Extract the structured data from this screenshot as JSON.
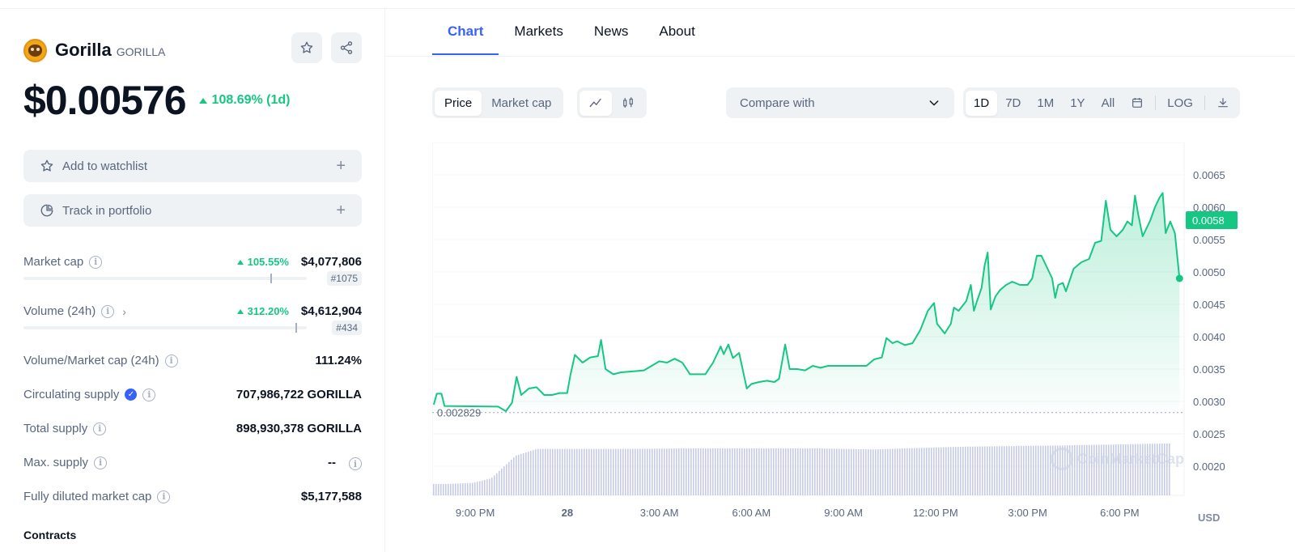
{
  "coin": {
    "name": "Gorilla",
    "symbol": "GORILLA",
    "price": "$0.00576",
    "change_1d": "108.69% (1d)"
  },
  "actions": {
    "watchlist": "Add to watchlist",
    "portfolio": "Track in portfolio",
    "plus": "+"
  },
  "stats": {
    "market_cap": {
      "label": "Market cap",
      "change": "105.55%",
      "value": "$4,077,806",
      "rank": "#1075",
      "bar_position_pct": 87
    },
    "volume": {
      "label": "Volume (24h)",
      "change": "312.20%",
      "value": "$4,612,904",
      "rank": "#434",
      "bar_position_pct": 96
    },
    "vol_mcap": {
      "label": "Volume/Market cap (24h)",
      "value": "111.24%"
    },
    "circulating": {
      "label": "Circulating supply",
      "value": "707,986,722 GORILLA"
    },
    "total": {
      "label": "Total supply",
      "value": "898,930,378 GORILLA"
    },
    "max": {
      "label": "Max. supply",
      "value": "--"
    },
    "fdmc": {
      "label": "Fully diluted market cap",
      "value": "$5,177,588"
    }
  },
  "contracts_label": "Contracts",
  "tabs": [
    "Chart",
    "Markets",
    "News",
    "About"
  ],
  "controls": {
    "price_label": "Price",
    "mcap_label": "Market cap",
    "compare_label": "Compare with",
    "ranges": [
      "1D",
      "7D",
      "1M",
      "1Y",
      "All"
    ],
    "log_label": "LOG"
  },
  "chart_data": {
    "type": "area",
    "line_color": "#16c784",
    "volume_color": "#c5cbe8",
    "currency_label": "USD",
    "current_label": "0.0058",
    "baseline_label": "0.002829",
    "baseline_value": 0.002829,
    "ylim": [
      0.00155,
      0.007
    ],
    "y_ticks": [
      "0.0065",
      "0.0060",
      "0.0055",
      "0.0050",
      "0.0045",
      "0.0040",
      "0.0035",
      "0.0030",
      "0.0025",
      "0.0020"
    ],
    "x_ticks": [
      {
        "label": "9:00 PM",
        "x": 3,
        "bold": false
      },
      {
        "label": "28",
        "x": 6,
        "bold": true
      },
      {
        "label": "3:00 AM",
        "x": 9,
        "bold": false
      },
      {
        "label": "6:00 AM",
        "x": 12,
        "bold": false
      },
      {
        "label": "9:00 AM",
        "x": 15,
        "bold": false
      },
      {
        "label": "12:00 PM",
        "x": 18,
        "bold": false
      },
      {
        "label": "3:00 PM",
        "x": 21,
        "bold": false
      },
      {
        "label": "6:00 PM",
        "x": 24,
        "bold": false
      }
    ],
    "x_range": [
      1.6,
      26.1
    ],
    "series": [
      {
        "values": [
          [
            1.65,
            0.00295
          ],
          [
            1.75,
            0.00312
          ],
          [
            1.9,
            0.00312
          ],
          [
            2.0,
            0.00293
          ],
          [
            3.75,
            0.00292
          ],
          [
            4.0,
            0.00285
          ],
          [
            4.2,
            0.00298
          ],
          [
            4.35,
            0.00338
          ],
          [
            4.5,
            0.0031
          ],
          [
            4.75,
            0.0032
          ],
          [
            5.0,
            0.00322
          ],
          [
            5.25,
            0.0031
          ],
          [
            5.5,
            0.0031
          ],
          [
            5.75,
            0.00313
          ],
          [
            6.0,
            0.00313
          ],
          [
            6.1,
            0.0034
          ],
          [
            6.25,
            0.00372
          ],
          [
            6.5,
            0.0036
          ],
          [
            6.75,
            0.00368
          ],
          [
            7.0,
            0.0037
          ],
          [
            7.1,
            0.00395
          ],
          [
            7.25,
            0.0035
          ],
          [
            7.5,
            0.00342
          ],
          [
            7.75,
            0.00345
          ],
          [
            8.0,
            0.00346
          ],
          [
            8.5,
            0.00348
          ],
          [
            8.75,
            0.00355
          ],
          [
            9.0,
            0.00362
          ],
          [
            9.25,
            0.0036
          ],
          [
            9.5,
            0.00366
          ],
          [
            9.75,
            0.0036
          ],
          [
            10.0,
            0.00342
          ],
          [
            10.5,
            0.00342
          ],
          [
            10.75,
            0.0036
          ],
          [
            11.0,
            0.00385
          ],
          [
            11.1,
            0.00373
          ],
          [
            11.25,
            0.00388
          ],
          [
            11.4,
            0.00367
          ],
          [
            11.6,
            0.00375
          ],
          [
            11.85,
            0.0032
          ],
          [
            12.0,
            0.00327
          ],
          [
            12.25,
            0.0033
          ],
          [
            12.5,
            0.00332
          ],
          [
            12.75,
            0.0033
          ],
          [
            12.9,
            0.00335
          ],
          [
            13.1,
            0.00388
          ],
          [
            13.25,
            0.0035
          ],
          [
            13.5,
            0.0035
          ],
          [
            13.75,
            0.00348
          ],
          [
            14.0,
            0.00355
          ],
          [
            14.25,
            0.00352
          ],
          [
            14.5,
            0.00355
          ],
          [
            15.0,
            0.00355
          ],
          [
            15.5,
            0.00355
          ],
          [
            15.75,
            0.00355
          ],
          [
            16.0,
            0.00365
          ],
          [
            16.25,
            0.00368
          ],
          [
            16.4,
            0.00398
          ],
          [
            16.6,
            0.0039
          ],
          [
            16.75,
            0.00393
          ],
          [
            17.0,
            0.00387
          ],
          [
            17.25,
            0.0039
          ],
          [
            17.5,
            0.0041
          ],
          [
            17.75,
            0.0044
          ],
          [
            17.95,
            0.00452
          ],
          [
            18.05,
            0.0042
          ],
          [
            18.3,
            0.00405
          ],
          [
            18.5,
            0.0042
          ],
          [
            18.6,
            0.00445
          ],
          [
            18.75,
            0.0044
          ],
          [
            19.0,
            0.00455
          ],
          [
            19.15,
            0.0048
          ],
          [
            19.25,
            0.0044
          ],
          [
            19.35,
            0.00455
          ],
          [
            19.5,
            0.00475
          ],
          [
            19.6,
            0.0051
          ],
          [
            19.7,
            0.0053
          ],
          [
            19.8,
            0.00442
          ],
          [
            19.95,
            0.00462
          ],
          [
            20.1,
            0.00472
          ],
          [
            20.3,
            0.0048
          ],
          [
            20.5,
            0.00485
          ],
          [
            20.75,
            0.0048
          ],
          [
            21.0,
            0.0048
          ],
          [
            21.15,
            0.0049
          ],
          [
            21.3,
            0.00525
          ],
          [
            21.45,
            0.00525
          ],
          [
            21.6,
            0.0051
          ],
          [
            21.8,
            0.0049
          ],
          [
            21.9,
            0.0046
          ],
          [
            22.0,
            0.0048
          ],
          [
            22.15,
            0.00483
          ],
          [
            22.25,
            0.0047
          ],
          [
            22.5,
            0.00505
          ],
          [
            22.75,
            0.00515
          ],
          [
            23.0,
            0.0052
          ],
          [
            23.2,
            0.00545
          ],
          [
            23.4,
            0.00548
          ],
          [
            23.55,
            0.0061
          ],
          [
            23.7,
            0.00565
          ],
          [
            23.9,
            0.00555
          ],
          [
            24.1,
            0.00565
          ],
          [
            24.25,
            0.00578
          ],
          [
            24.4,
            0.00572
          ],
          [
            24.5,
            0.00618
          ],
          [
            24.6,
            0.0059
          ],
          [
            24.75,
            0.00555
          ],
          [
            24.9,
            0.0057
          ],
          [
            25.0,
            0.0058
          ],
          [
            25.15,
            0.006
          ],
          [
            25.3,
            0.00615
          ],
          [
            25.4,
            0.00622
          ],
          [
            25.5,
            0.0056
          ],
          [
            25.65,
            0.00578
          ],
          [
            25.8,
            0.0056
          ],
          [
            25.95,
            0.0049
          ]
        ]
      }
    ],
    "volume_profile": [
      [
        1.6,
        0.2
      ],
      [
        2.0,
        0.2
      ],
      [
        2.9,
        0.22
      ],
      [
        3.5,
        0.3
      ],
      [
        4.0,
        0.55
      ],
      [
        4.3,
        0.7
      ],
      [
        5.0,
        0.82
      ],
      [
        8.0,
        0.82
      ],
      [
        10.0,
        0.83
      ],
      [
        14.0,
        0.83
      ],
      [
        16.0,
        0.81
      ],
      [
        17.0,
        0.83
      ],
      [
        19.0,
        0.86
      ],
      [
        22.0,
        0.88
      ],
      [
        24.0,
        0.9
      ],
      [
        26.0,
        0.92
      ]
    ]
  },
  "watermark": "CoinMarketCap"
}
